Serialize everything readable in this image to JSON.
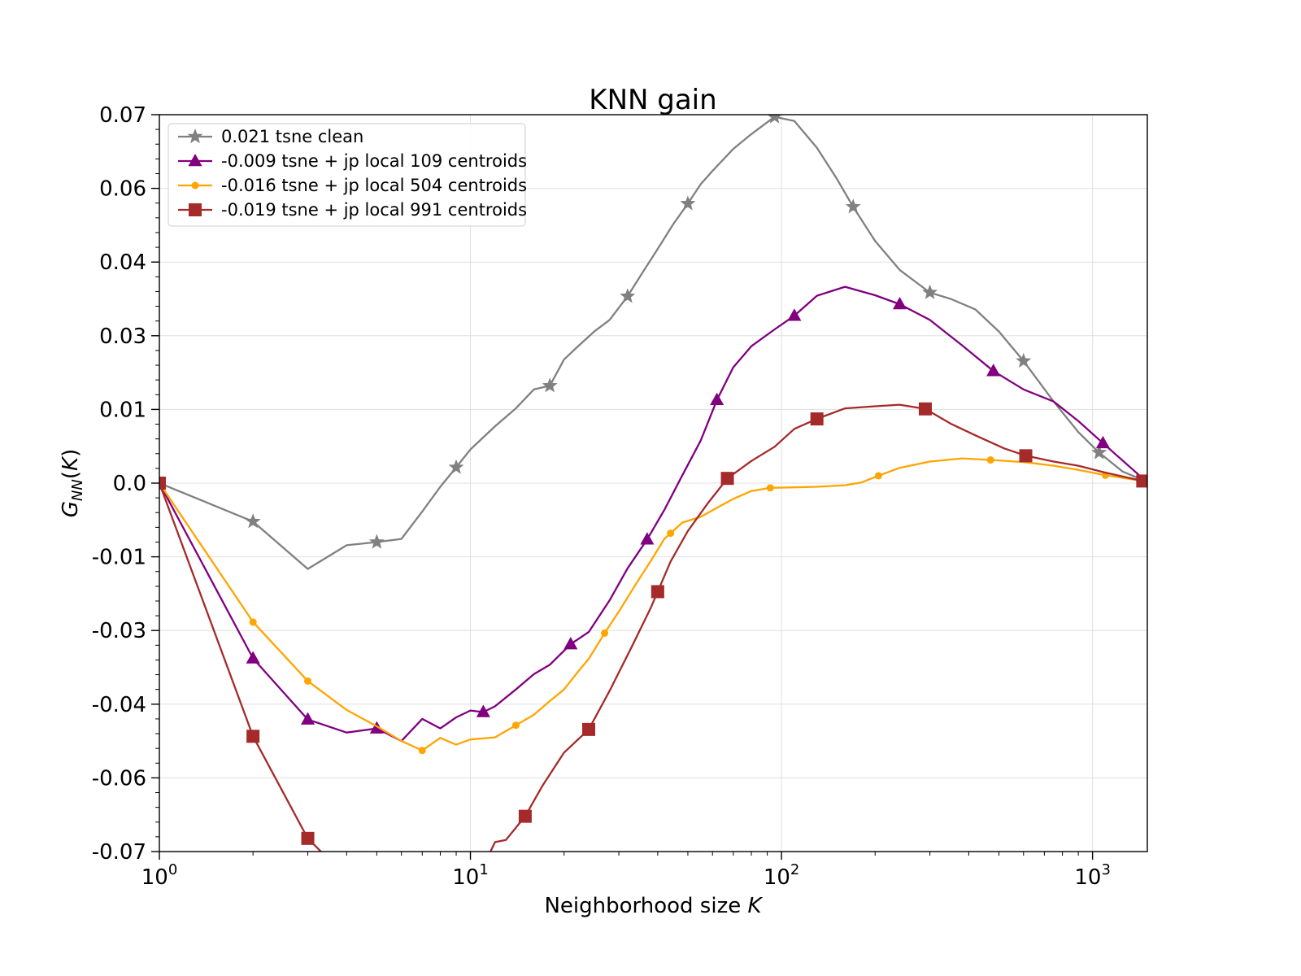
{
  "chart_data": {
    "type": "line",
    "title": "KNN gain",
    "xlabel": "Neighborhood size K",
    "ylabel": "G_NN(K)",
    "x_scale": "log",
    "xlim": [
      1,
      1500
    ],
    "ylim": [
      -0.07,
      0.07
    ],
    "grid": true,
    "legend_position": "top-left",
    "y_ticks": [
      "-0.07",
      "-0.06",
      "-0.04",
      "-0.03",
      "-0.01",
      "0.0",
      "0.01",
      "0.03",
      "0.04",
      "0.06",
      "0.07"
    ],
    "y_tick_values": [
      -0.07,
      -0.056,
      -0.042,
      -0.028,
      -0.014,
      0.0,
      0.014,
      0.028,
      0.042,
      0.056,
      0.07
    ],
    "x_ticks": [
      {
        "value": 1,
        "base": "10",
        "exp": "0"
      },
      {
        "value": 10,
        "base": "10",
        "exp": "1"
      },
      {
        "value": 100,
        "base": "10",
        "exp": "2"
      },
      {
        "value": 1000,
        "base": "10",
        "exp": "3"
      }
    ],
    "series": [
      {
        "name": "0.021 tsne clean",
        "color": "#808080",
        "marker": "star",
        "x": [
          1,
          2,
          3,
          4,
          5,
          6,
          7,
          8,
          9,
          10,
          12,
          14,
          16,
          18,
          20,
          22,
          25,
          28,
          32,
          36,
          40,
          45,
          50,
          55,
          60,
          70,
          80,
          95,
          110,
          130,
          150,
          170,
          200,
          240,
          300,
          350,
          420,
          500,
          600,
          750,
          900,
          1050,
          1250,
          1450
        ],
        "y": [
          0.0,
          -0.0073,
          -0.0163,
          -0.0118,
          -0.0112,
          -0.0106,
          -0.0054,
          -0.0007,
          0.003,
          0.0064,
          0.0108,
          0.0142,
          0.0178,
          0.0185,
          0.0235,
          0.0258,
          0.0288,
          0.031,
          0.0355,
          0.0403,
          0.0445,
          0.0493,
          0.0531,
          0.0568,
          0.0593,
          0.0635,
          0.0663,
          0.0696,
          0.0688,
          0.0637,
          0.058,
          0.0525,
          0.046,
          0.0405,
          0.0362,
          0.035,
          0.033,
          0.0288,
          0.0232,
          0.0155,
          0.0097,
          0.0058,
          0.0022,
          0.0006
        ],
        "marker_x": [
          2,
          5,
          9,
          18,
          32,
          50,
          95,
          170,
          300,
          600,
          1050
        ]
      },
      {
        "name": "-0.009 tsne + jp local 109 centroids",
        "color": "#800080",
        "marker": "triangle",
        "x": [
          1,
          2,
          3,
          4,
          5,
          6,
          7,
          8,
          9,
          10,
          11,
          12,
          14,
          16,
          18,
          21,
          24,
          28,
          32,
          37,
          42,
          48,
          55,
          62,
          70,
          80,
          95,
          110,
          130,
          160,
          200,
          240,
          300,
          380,
          480,
          600,
          750,
          900,
          1080,
          1450
        ],
        "y": [
          0.0,
          -0.0333,
          -0.0449,
          -0.0474,
          -0.0466,
          -0.049,
          -0.0448,
          -0.0466,
          -0.0445,
          -0.0432,
          -0.0435,
          -0.0424,
          -0.0392,
          -0.0363,
          -0.0345,
          -0.0306,
          -0.0283,
          -0.0223,
          -0.0162,
          -0.0107,
          -0.0051,
          0.0015,
          0.0081,
          0.0158,
          0.022,
          0.026,
          0.0292,
          0.0318,
          0.0356,
          0.0373,
          0.0357,
          0.034,
          0.031,
          0.0262,
          0.0213,
          0.0178,
          0.0155,
          0.0118,
          0.0076,
          0.0009
        ],
        "marker_x": [
          2,
          3,
          5,
          11,
          21,
          37,
          62,
          110,
          240,
          480,
          1080
        ]
      },
      {
        "name": "-0.016 tsne + jp local 504 centroids",
        "color": "#FFA500",
        "marker": "circle",
        "x": [
          1,
          2,
          3,
          4,
          5,
          6,
          7,
          8,
          9,
          10,
          12,
          14,
          16,
          18,
          20,
          22,
          24,
          27,
          30,
          34,
          38,
          42,
          48,
          55,
          62,
          70,
          80,
          92,
          110,
          130,
          160,
          180,
          205,
          240,
          300,
          380,
          470,
          600,
          750,
          900,
          1100,
          1450
        ],
        "y": [
          0.0,
          -0.0264,
          -0.0376,
          -0.0431,
          -0.0462,
          -0.049,
          -0.0508,
          -0.0484,
          -0.0497,
          -0.0487,
          -0.0483,
          -0.046,
          -0.044,
          -0.0414,
          -0.0392,
          -0.0361,
          -0.0334,
          -0.0285,
          -0.0244,
          -0.0192,
          -0.0148,
          -0.0106,
          -0.0075,
          -0.0064,
          -0.0047,
          -0.003,
          -0.0015,
          -0.0009,
          -0.0008,
          -0.0007,
          -0.0004,
          0.0001,
          0.0014,
          0.0029,
          0.0041,
          0.0047,
          0.0044,
          0.004,
          0.0033,
          0.0025,
          0.0015,
          0.0004
        ],
        "marker_x": [
          2,
          3,
          7,
          14,
          27,
          44,
          92,
          205,
          470,
          1100
        ]
      },
      {
        "name": "-0.019 tsne + jp local 991 centroids",
        "color": "#A52A2A",
        "marker": "square",
        "x": [
          1,
          2,
          3,
          4,
          5,
          6,
          7,
          8,
          9,
          10,
          11,
          12,
          13,
          15,
          17,
          20,
          24,
          28,
          33,
          38,
          44,
          50,
          58,
          67,
          80,
          95,
          110,
          130,
          160,
          200,
          240,
          290,
          350,
          430,
          520,
          610,
          750,
          900,
          1100,
          1450
        ],
        "y": [
          0.0,
          -0.0481,
          -0.0675,
          -0.0749,
          -0.0773,
          -0.0777,
          -0.0764,
          -0.0768,
          -0.0745,
          -0.0733,
          -0.0728,
          -0.0682,
          -0.0678,
          -0.0633,
          -0.0576,
          -0.0512,
          -0.0468,
          -0.0395,
          -0.0311,
          -0.0237,
          -0.0149,
          -0.0091,
          -0.0038,
          0.0009,
          0.0042,
          0.0069,
          0.0103,
          0.0122,
          0.0142,
          0.0146,
          0.0149,
          0.0141,
          0.0113,
          0.0088,
          0.0066,
          0.0052,
          0.0041,
          0.0033,
          0.002,
          0.0004
        ],
        "marker_x": [
          1,
          2,
          3,
          7,
          15,
          24,
          40,
          67,
          130,
          290,
          610,
          1450
        ]
      }
    ]
  }
}
